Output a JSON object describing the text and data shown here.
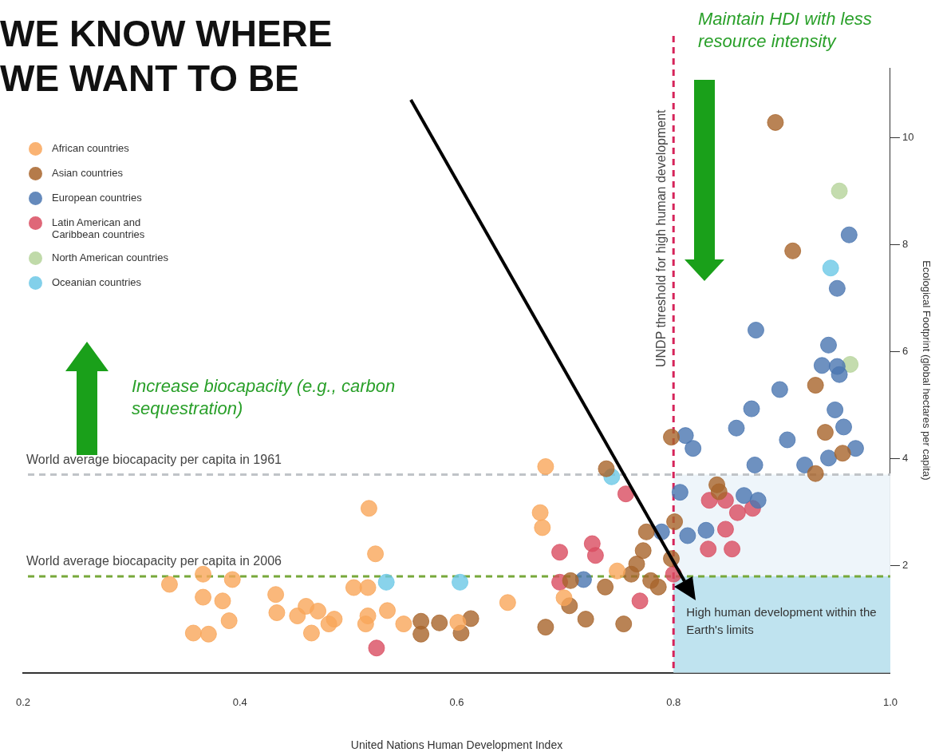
{
  "chart_data": {
    "type": "scatter",
    "title": "WE KNOW WHERE WE WANT TO BE",
    "xlabel": "United Nations Human Development Index",
    "ylabel": "Ecological Footprint (global hectares per capita)",
    "xlim": [
      0.2,
      1.0
    ],
    "xticks": [
      0.2,
      0.4,
      0.6,
      0.8,
      {
        "value": 1.0,
        "label": "1.0"
      }
    ],
    "ylim": [
      0,
      11.3
    ],
    "yticks": [
      2,
      4,
      6,
      8,
      10
    ],
    "grid": false,
    "legend": "top left",
    "marker": "circle",
    "series": [
      {
        "name": "African countries",
        "color": "#f9a65a",
        "x": [
          0.335,
          0.366,
          0.393,
          0.366,
          0.384,
          0.39,
          0.357,
          0.371,
          0.433,
          0.434,
          0.453,
          0.461,
          0.472,
          0.466,
          0.482,
          0.487,
          0.505,
          0.518,
          0.519,
          0.525,
          0.518,
          0.516,
          0.536,
          0.551,
          0.601,
          0.682,
          0.677,
          0.679,
          0.748,
          0.647,
          0.699
        ],
        "values": [
          1.65,
          1.84,
          1.74,
          1.41,
          1.34,
          0.97,
          0.74,
          0.72,
          1.46,
          1.12,
          1.06,
          1.24,
          1.15,
          0.74,
          0.91,
          1.0,
          1.59,
          1.59,
          3.07,
          2.22,
          1.06,
          0.91,
          1.16,
          0.91,
          0.94,
          3.85,
          2.99,
          2.71,
          1.9,
          1.31,
          1.4
        ]
      },
      {
        "name": "Asian countries",
        "color": "#a8642a",
        "x": [
          0.894,
          0.91,
          0.931,
          0.94,
          0.956,
          0.931,
          0.798,
          0.84,
          0.842,
          0.801,
          0.798,
          0.738,
          0.775,
          0.772,
          0.766,
          0.761,
          0.779,
          0.786,
          0.705,
          0.737,
          0.704,
          0.719,
          0.754,
          0.682,
          0.567,
          0.567,
          0.584,
          0.613,
          0.604
        ],
        "values": [
          10.28,
          7.88,
          5.37,
          4.49,
          4.1,
          3.72,
          4.4,
          3.51,
          3.38,
          2.82,
          2.13,
          3.81,
          2.63,
          2.28,
          2.03,
          1.84,
          1.72,
          1.6,
          1.72,
          1.6,
          1.25,
          1.0,
          0.91,
          0.85,
          0.96,
          0.72,
          0.93,
          1.01,
          0.74
        ]
      },
      {
        "name": "European countries",
        "color": "#4a76b0",
        "x": [
          0.962,
          0.951,
          0.876,
          0.943,
          0.937,
          0.951,
          0.898,
          0.872,
          0.858,
          0.905,
          0.875,
          0.921,
          0.943,
          0.968,
          0.949,
          0.957,
          0.953,
          0.811,
          0.818,
          0.806,
          0.865,
          0.878,
          0.789,
          0.813,
          0.83,
          0.717
        ],
        "values": [
          8.18,
          7.18,
          6.4,
          6.12,
          5.74,
          5.72,
          5.29,
          4.93,
          4.57,
          4.35,
          3.88,
          3.88,
          4.01,
          4.19,
          4.91,
          4.59,
          5.57,
          4.43,
          4.19,
          3.37,
          3.31,
          3.22,
          2.63,
          2.56,
          2.66,
          1.74
        ]
      },
      {
        "name": "Latin American and Caribbean countries",
        "color": "#d94c60",
        "x": [
          0.848,
          0.859,
          0.873,
          0.848,
          0.832,
          0.854,
          0.8,
          0.833,
          0.756,
          0.695,
          0.725,
          0.728,
          0.695,
          0.769,
          0.526
        ],
        "values": [
          3.22,
          2.99,
          3.07,
          2.68,
          2.31,
          2.31,
          1.84,
          3.22,
          3.34,
          2.25,
          2.41,
          2.19,
          1.69,
          1.34,
          0.46
        ]
      },
      {
        "name": "North American countries",
        "color": "#b5d39a",
        "x": [
          0.953,
          0.963
        ],
        "values": [
          9.0,
          5.76
        ]
      },
      {
        "name": "Oceanian countries",
        "color": "#6cc8e6",
        "x": [
          0.535,
          0.603,
          0.743,
          0.945
        ],
        "values": [
          1.69,
          1.69,
          3.66,
          7.56
        ]
      }
    ],
    "ref_lines": [
      {
        "axis": "y",
        "value": 3.7,
        "label": "World average biocapacity per capita in 1961",
        "color": "#c0c4c8",
        "line_style": "dashed"
      },
      {
        "axis": "y",
        "value": 1.8,
        "label": "World average biocapacity per capita in 2006",
        "color": "#77a83a",
        "line_style": "dashed"
      },
      {
        "axis": "x",
        "value": 0.8,
        "label": "UNDP threshold for high human development",
        "color": "#d6245a",
        "line_style": "dashed"
      }
    ],
    "bands": [
      {
        "axis": "x",
        "from": 0.8,
        "to": 1.0,
        "label": null,
        "color": "#eef5fa"
      },
      {
        "axis": "x",
        "from": 0.8,
        "to": 1.0,
        "label": "High human development within the Earth's limits",
        "color": "#bfe3ef"
      }
    ],
    "annotations": [
      "Maintain HDI with less resource intensity",
      "Increase biocapacity (e.g., carbon sequestration)"
    ]
  }
}
